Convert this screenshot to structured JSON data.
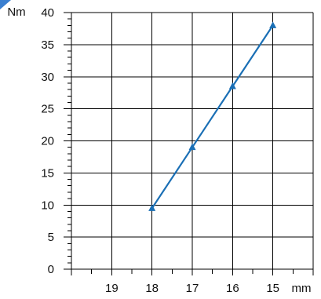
{
  "chart_data": {
    "type": "line",
    "y_unit": "Nm",
    "x_unit": "mm",
    "x_ticks": [
      "19",
      "18",
      "17",
      "16",
      "15"
    ],
    "y_ticks": [
      "0",
      "5",
      "10",
      "15",
      "20",
      "25",
      "30",
      "35",
      "40"
    ],
    "xlim": [
      20,
      14
    ],
    "ylim": [
      0,
      40
    ],
    "x_reversed": true,
    "grid": true,
    "series": [
      {
        "color": "#1a6fb5",
        "marker": "triangle",
        "points": [
          [
            18,
            9.5
          ],
          [
            17,
            19
          ],
          [
            16,
            28.5
          ],
          [
            15,
            38
          ]
        ]
      }
    ]
  }
}
